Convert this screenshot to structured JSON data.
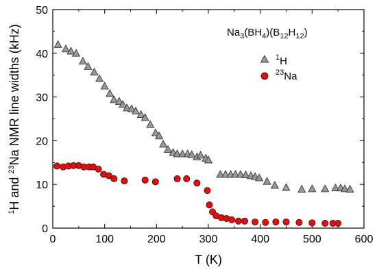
{
  "chart_data": {
    "type": "scatter",
    "title": "",
    "xlabel": "T  (K)",
    "ylabel": {
      "sup1": "1",
      "part1": "H and ",
      "sup2": "23",
      "part2": "Na NMR line widths  (kHz)"
    },
    "xlim": [
      0,
      600
    ],
    "ylim": [
      0,
      50
    ],
    "x_ticks": [
      "0",
      "100",
      "200",
      "300",
      "400",
      "500",
      "600"
    ],
    "y_ticks": [
      "0",
      "10",
      "20",
      "30",
      "40",
      "50"
    ],
    "x_tick_values": [
      0,
      100,
      200,
      300,
      400,
      500,
      600
    ],
    "y_tick_values": [
      0,
      10,
      20,
      30,
      40,
      50
    ],
    "grid": false,
    "legend_position": "top-right",
    "annotation": {
      "p1": "Na",
      "s1": "3",
      "p2": "(BH",
      "s2": "4",
      "p3": ")(B",
      "s3": "12",
      "p4": "H",
      "s4": "12",
      "p5": ")"
    },
    "series": [
      {
        "name": "1H",
        "legend_sup": "1",
        "legend_main": "H",
        "marker": "triangle",
        "color": "#9a9a9a",
        "x": [
          10,
          25,
          35,
          45,
          58,
          68,
          80,
          90,
          100,
          110,
          118,
          128,
          135,
          143,
          152,
          160,
          170,
          178,
          188,
          198,
          205,
          213,
          222,
          232,
          240,
          250,
          260,
          268,
          278,
          285,
          295,
          300,
          323,
          333,
          343,
          352,
          362,
          372,
          382,
          390,
          398,
          413,
          428,
          450,
          480,
          500,
          525,
          545,
          555,
          563,
          573
        ],
        "y": [
          42,
          41,
          40.5,
          40,
          38.2,
          37,
          35.7,
          34.2,
          32.5,
          30.8,
          29.4,
          29,
          28.3,
          27.5,
          27.3,
          26.8,
          26,
          25.3,
          23.7,
          21.8,
          21.1,
          19.2,
          18,
          17.3,
          17,
          17,
          17,
          16.8,
          16.3,
          16.7,
          16,
          15.6,
          12.3,
          12.3,
          12.3,
          12.3,
          12.3,
          12.2,
          12,
          11.8,
          11.5,
          10.7,
          9.8,
          9.3,
          8.9,
          9,
          9,
          9.2,
          9.2,
          9,
          8.9
        ]
      },
      {
        "name": "23Na",
        "legend_sup": "23",
        "legend_main": "Na",
        "marker": "circle",
        "color": "#dd1111",
        "x": [
          8,
          20,
          30,
          40,
          50,
          60,
          70,
          78,
          88,
          98,
          108,
          118,
          138,
          178,
          198,
          240,
          258,
          278,
          298,
          302,
          308,
          315,
          325,
          335,
          345,
          358,
          370,
          390,
          410,
          430,
          450,
          475,
          500,
          525,
          540,
          550
        ],
        "y": [
          14.2,
          14,
          14.2,
          14.3,
          14.3,
          14,
          14,
          14,
          13.5,
          12.3,
          12,
          11.3,
          10.8,
          11,
          10.6,
          11.3,
          11.3,
          10.3,
          8.6,
          5.3,
          3.7,
          2.8,
          2.4,
          2.2,
          1.9,
          1.6,
          1.6,
          1.4,
          1.3,
          1.4,
          1.4,
          1.3,
          1.2,
          1.1,
          1.1,
          1.1
        ]
      }
    ]
  }
}
